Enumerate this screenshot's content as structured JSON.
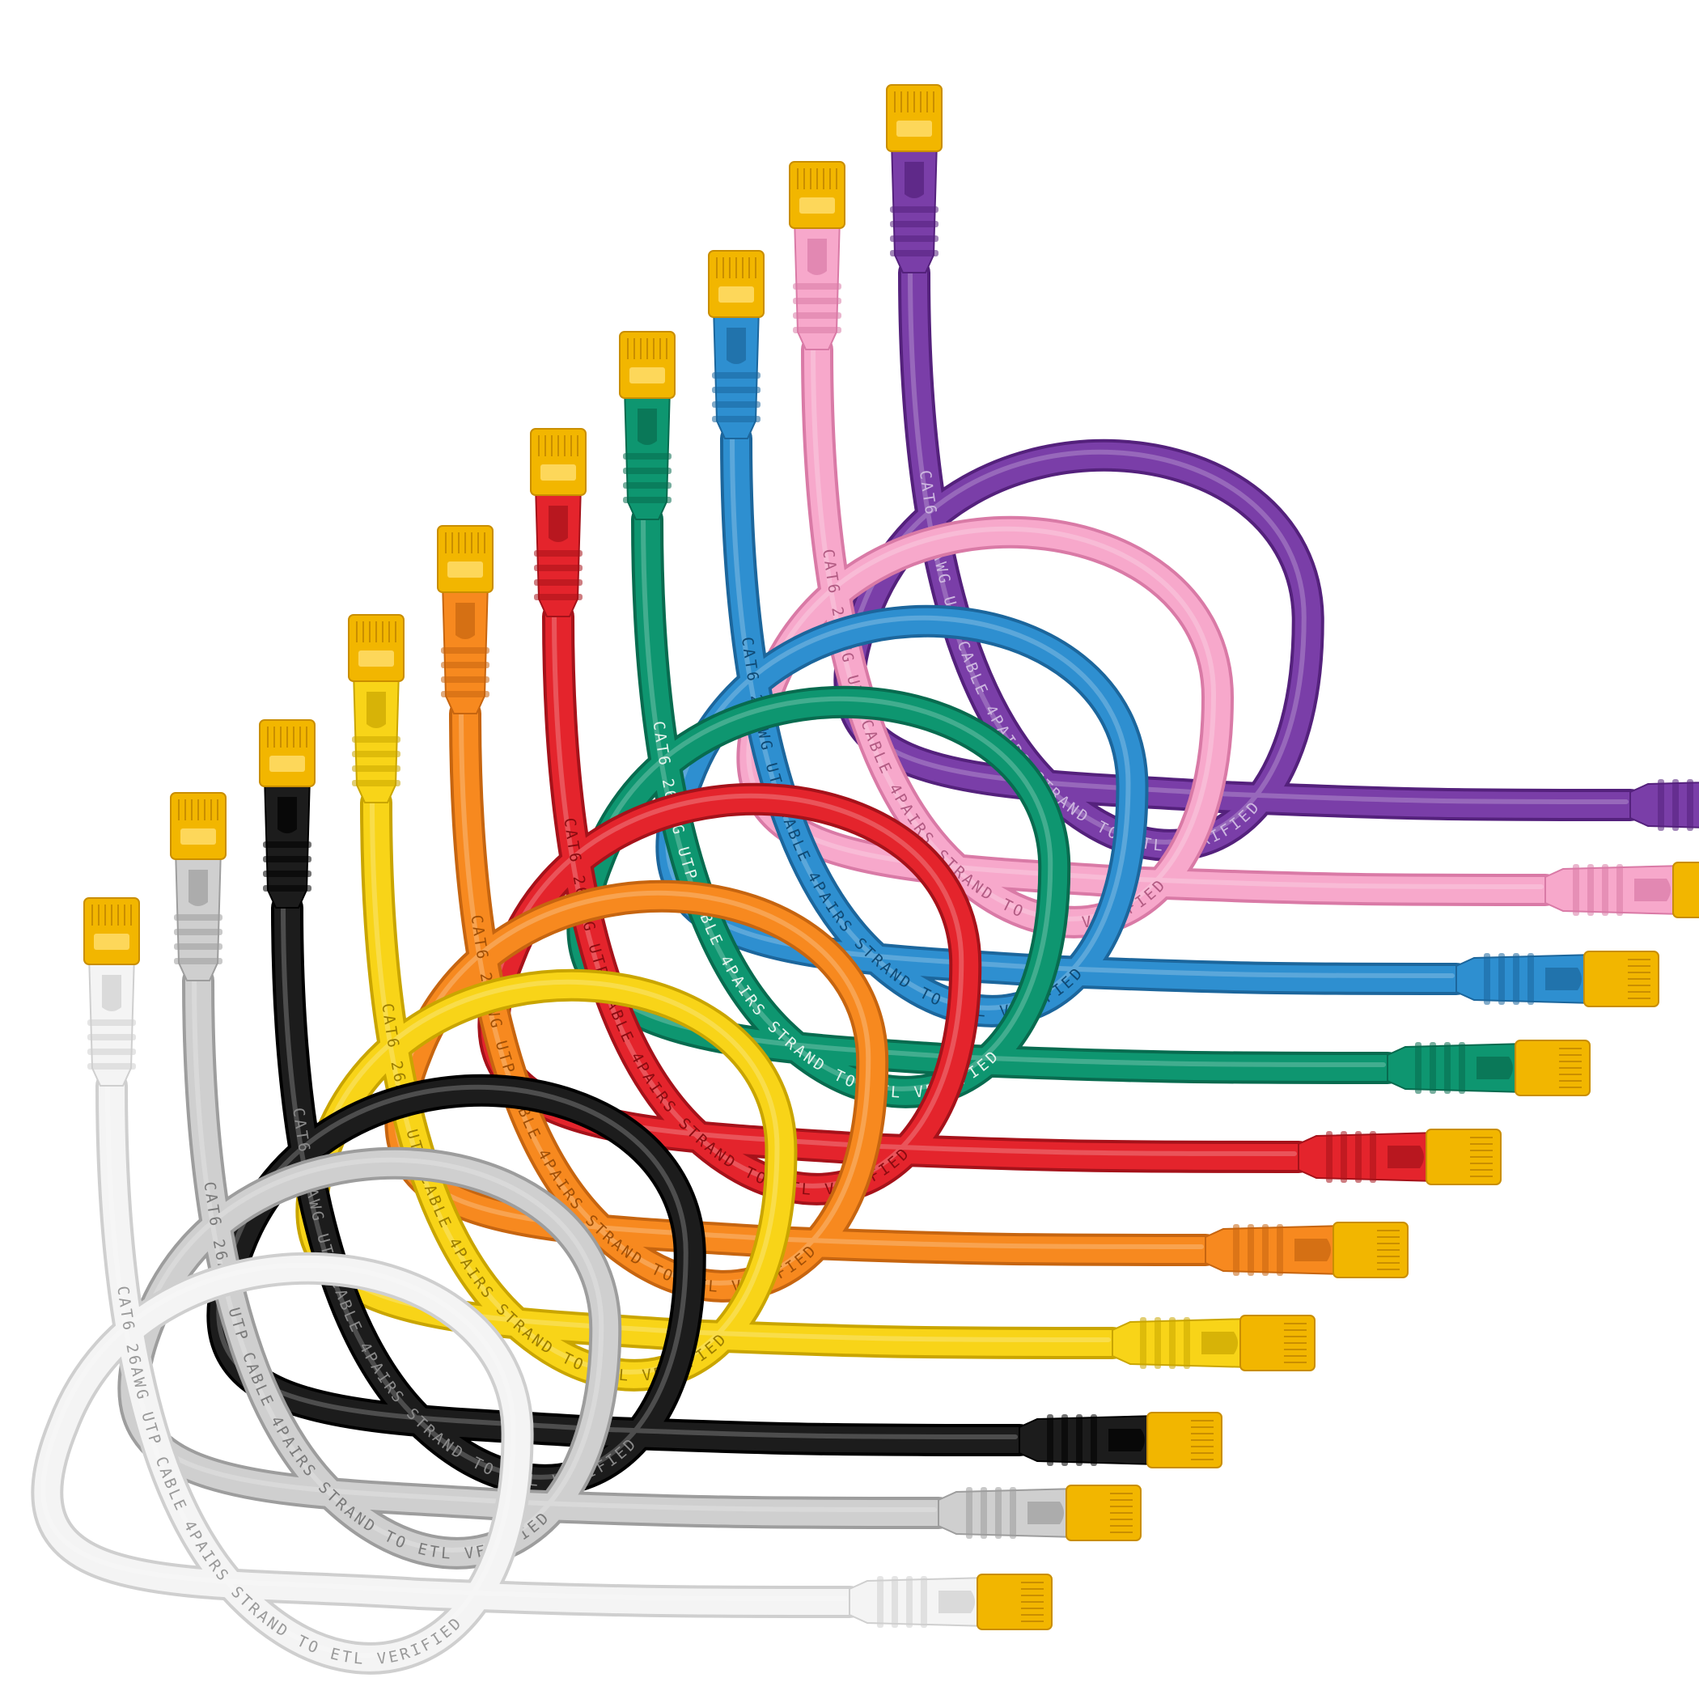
{
  "image": {
    "background": "#ffffff",
    "cable_print": "CAT6 26AWG UTP CABLE 4PAIRS STRAND TO ETL VERIFIED"
  },
  "colors": {
    "plug_amber": "#f2b600",
    "plug_amber_dark": "#c98e00"
  },
  "cables": [
    {
      "name": "white",
      "jacket": "#f4f4f4",
      "shade": "#cfcfcf",
      "ink": "#9a9a9a"
    },
    {
      "name": "gray",
      "jacket": "#cfcfcf",
      "shade": "#9d9d9d",
      "ink": "#7a7a7a"
    },
    {
      "name": "black",
      "jacket": "#1c1c1c",
      "shade": "#000000",
      "ink": "#8a8a8a"
    },
    {
      "name": "yellow",
      "jacket": "#f8d418",
      "shade": "#c9a500",
      "ink": "#9b7d00"
    },
    {
      "name": "orange",
      "jacket": "#f7891f",
      "shade": "#c66510",
      "ink": "#a04f06"
    },
    {
      "name": "red",
      "jacket": "#e4242c",
      "shade": "#a5121a",
      "ink": "#8a0b10"
    },
    {
      "name": "green",
      "jacket": "#0e9670",
      "shade": "#086b4f",
      "ink": "#e3f3ec"
    },
    {
      "name": "blue",
      "jacket": "#2e8fd0",
      "shade": "#1c669c",
      "ink": "#0f4a75"
    },
    {
      "name": "pink",
      "jacket": "#f7a8cb",
      "shade": "#d97aa6",
      "ink": "#b25b83"
    },
    {
      "name": "purple",
      "jacket": "#7a3ea8",
      "shade": "#54217c",
      "ink": "#cdb7e0"
    }
  ]
}
